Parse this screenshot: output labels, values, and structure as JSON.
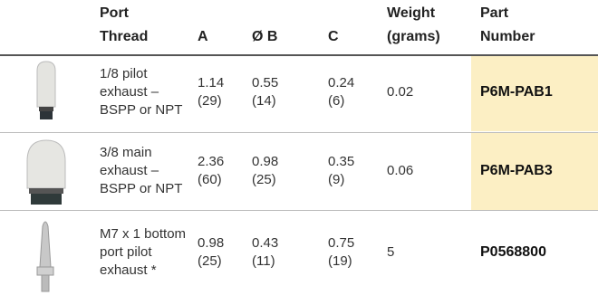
{
  "table": {
    "header": [
      [
        "Port",
        "Thread"
      ],
      [
        "A"
      ],
      [
        "Ø B"
      ],
      [
        "C"
      ],
      [
        "Weight",
        "(grams)"
      ],
      [
        "Part",
        "Number"
      ]
    ],
    "rows": [
      [
        [
          "1/8 pilot",
          "exhaust –",
          "BSPP or NPT"
        ],
        [
          "1.14",
          "(29)"
        ],
        [
          "0.55",
          "(14)"
        ],
        [
          "0.24",
          "(6)"
        ],
        [
          "0.02"
        ],
        [
          "P6M-PAB1"
        ]
      ],
      [
        [
          "3/8 main",
          "exhaust –",
          "BSPP or NPT"
        ],
        [
          "2.36",
          "(60)"
        ],
        [
          "0.98",
          "(25)"
        ],
        [
          "0.35",
          "(9)"
        ],
        [
          "0.06"
        ],
        [
          "P6M-PAB3"
        ]
      ],
      [
        [
          "M7 x 1 bottom",
          "port pilot",
          "exhaust *"
        ],
        [
          "0.98",
          "(25)"
        ],
        [
          "0.43",
          "(11)"
        ],
        [
          "0.75",
          "(19)"
        ],
        [
          "5"
        ],
        [
          "P0568800"
        ]
      ]
    ]
  }
}
